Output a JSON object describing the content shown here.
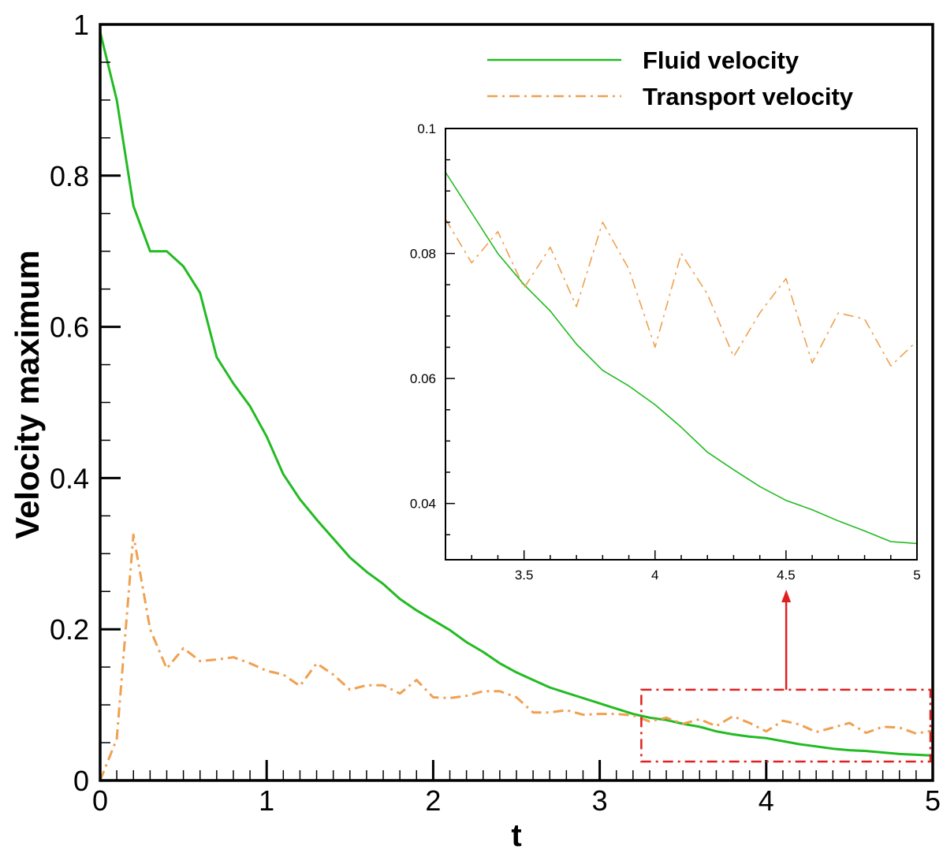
{
  "chart_data": [
    {
      "id": "main",
      "type": "line",
      "title": "",
      "xlabel": "t",
      "ylabel": "Velocity maximum",
      "xlim": [
        0,
        5
      ],
      "ylim": [
        0,
        1
      ],
      "xticks": [
        0,
        1,
        2,
        3,
        4,
        5
      ],
      "xtick_labels": [
        "0",
        "1",
        "2",
        "3",
        "4",
        "5"
      ],
      "yticks": [
        0,
        0.2,
        0.4,
        0.6,
        0.8,
        1
      ],
      "ytick_labels": [
        "0",
        "0.2",
        "0.4",
        "0.6",
        "0.8",
        "1"
      ],
      "grid": false,
      "legend_position": "top-right",
      "series": [
        {
          "name": "Fluid velocity",
          "color": "#22bb22",
          "style": "solid",
          "x": [
            0,
            0.1,
            0.2,
            0.3,
            0.4,
            0.5,
            0.6,
            0.7,
            0.8,
            0.9,
            1.0,
            1.1,
            1.2,
            1.3,
            1.4,
            1.5,
            1.6,
            1.7,
            1.8,
            1.9,
            2.0,
            2.1,
            2.2,
            2.3,
            2.4,
            2.5,
            2.6,
            2.7,
            2.8,
            2.9,
            3.0,
            3.1,
            3.2,
            3.3,
            3.4,
            3.5,
            3.6,
            3.7,
            3.8,
            3.9,
            4.0,
            4.1,
            4.2,
            4.3,
            4.4,
            4.5,
            4.6,
            4.7,
            4.8,
            4.9,
            5.0
          ],
          "y": [
            0.99,
            0.9,
            0.76,
            0.7,
            0.7,
            0.68,
            0.645,
            0.56,
            0.525,
            0.495,
            0.455,
            0.405,
            0.372,
            0.345,
            0.32,
            0.295,
            0.276,
            0.26,
            0.24,
            0.225,
            0.212,
            0.199,
            0.183,
            0.17,
            0.155,
            0.143,
            0.133,
            0.123,
            0.116,
            0.109,
            0.102,
            0.095,
            0.088,
            0.083,
            0.08,
            0.075,
            0.071,
            0.065,
            0.061,
            0.058,
            0.056,
            0.052,
            0.048,
            0.045,
            0.042,
            0.04,
            0.039,
            0.037,
            0.035,
            0.034,
            0.033
          ]
        },
        {
          "name": "Transport velocity",
          "color": "#f0a050",
          "style": "dashdot",
          "x": [
            0,
            0.1,
            0.2,
            0.3,
            0.4,
            0.5,
            0.6,
            0.7,
            0.8,
            0.9,
            1.0,
            1.1,
            1.2,
            1.3,
            1.4,
            1.5,
            1.6,
            1.7,
            1.8,
            1.9,
            2.0,
            2.1,
            2.2,
            2.3,
            2.4,
            2.5,
            2.6,
            2.7,
            2.8,
            2.9,
            3.0,
            3.1,
            3.2,
            3.3,
            3.4,
            3.5,
            3.6,
            3.7,
            3.8,
            3.9,
            4.0,
            4.1,
            4.2,
            4.3,
            4.4,
            4.5,
            4.6,
            4.7,
            4.8,
            4.9,
            5.0
          ],
          "y": [
            0.0,
            0.055,
            0.325,
            0.2,
            0.148,
            0.175,
            0.158,
            0.16,
            0.163,
            0.155,
            0.145,
            0.14,
            0.125,
            0.155,
            0.14,
            0.12,
            0.126,
            0.126,
            0.115,
            0.133,
            0.11,
            0.109,
            0.112,
            0.118,
            0.118,
            0.11,
            0.09,
            0.09,
            0.093,
            0.087,
            0.088,
            0.088,
            0.086,
            0.078,
            0.083,
            0.075,
            0.081,
            0.072,
            0.085,
            0.076,
            0.065,
            0.079,
            0.074,
            0.064,
            0.07,
            0.076,
            0.063,
            0.071,
            0.07,
            0.062,
            0.066
          ]
        }
      ],
      "annotation": {
        "highlight_box": {
          "x": [
            3.25,
            5
          ],
          "y": [
            0.025,
            0.12
          ]
        },
        "arrow_to": "inset",
        "color": "#e02020"
      }
    },
    {
      "id": "inset",
      "type": "line",
      "title": "",
      "xlabel": "",
      "ylabel": "",
      "xlim": [
        3.2,
        5
      ],
      "ylim": [
        0.031,
        0.1
      ],
      "xticks": [
        3.5,
        4,
        4.5,
        5
      ],
      "xtick_labels": [
        "3.5",
        "4",
        "4.5",
        "5"
      ],
      "yticks": [
        0.04,
        0.06,
        0.08,
        0.1
      ],
      "ytick_labels": [
        "0.04",
        "0.06",
        "0.08",
        "0.1"
      ],
      "grid": false,
      "series": [
        {
          "name": "Fluid velocity",
          "color": "#22bb22",
          "style": "solid",
          "x": [
            3.2,
            3.3,
            3.4,
            3.5,
            3.6,
            3.7,
            3.8,
            3.9,
            4.0,
            4.1,
            4.2,
            4.3,
            4.4,
            4.5,
            4.6,
            4.7,
            4.8,
            4.9,
            5.0
          ],
          "y": [
            0.093,
            0.0865,
            0.08,
            0.075,
            0.0708,
            0.0655,
            0.0613,
            0.0588,
            0.0558,
            0.0522,
            0.0482,
            0.0454,
            0.0427,
            0.0405,
            0.039,
            0.0372,
            0.0356,
            0.0339,
            0.0336
          ]
        },
        {
          "name": "Transport velocity",
          "color": "#f0a050",
          "style": "dashdot",
          "x": [
            3.2,
            3.3,
            3.4,
            3.5,
            3.6,
            3.7,
            3.8,
            3.9,
            4.0,
            4.1,
            4.2,
            4.3,
            4.4,
            4.5,
            4.6,
            4.7,
            4.8,
            4.9,
            5.0
          ],
          "y": [
            0.0855,
            0.0785,
            0.0835,
            0.0745,
            0.081,
            0.0715,
            0.085,
            0.0775,
            0.065,
            0.08,
            0.0735,
            0.0635,
            0.0705,
            0.076,
            0.0625,
            0.0705,
            0.0695,
            0.062,
            0.066
          ]
        }
      ]
    }
  ]
}
